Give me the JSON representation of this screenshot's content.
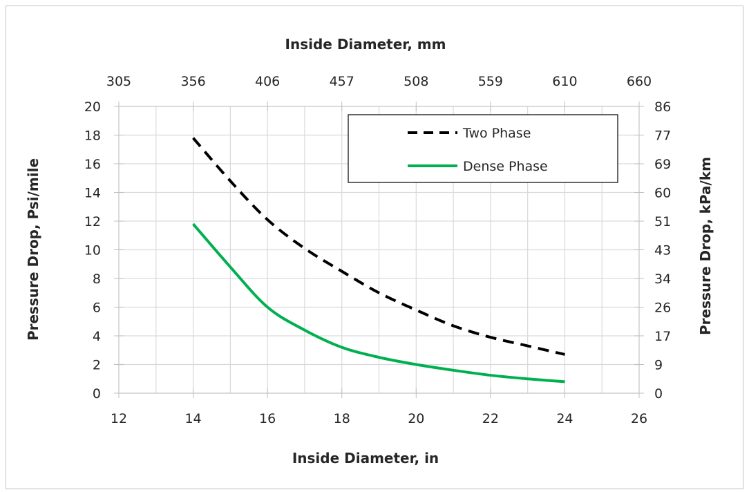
{
  "chart_data": {
    "type": "line",
    "x_axis_bottom": {
      "label": "Inside Diameter, in",
      "range": [
        12,
        26
      ],
      "ticks": [
        12,
        14,
        16,
        18,
        20,
        22,
        24,
        26
      ]
    },
    "x_axis_top": {
      "label": "Inside Diameter, mm",
      "ticks": [
        "305",
        "356",
        "406",
        "457",
        "508",
        "559",
        "610",
        "660"
      ]
    },
    "y_axis_left": {
      "label": "Pressure Drop, Psi/mile",
      "range": [
        0,
        20
      ],
      "ticks": [
        0,
        2,
        4,
        6,
        8,
        10,
        12,
        14,
        16,
        18,
        20
      ]
    },
    "y_axis_right": {
      "label": "Pressure Drop, kPa/km",
      "ticks": [
        "0",
        "9",
        "17",
        "26",
        "34",
        "43",
        "51",
        "60",
        "69",
        "77",
        "86"
      ]
    },
    "grid": true,
    "legend_position": "top-right",
    "series": [
      {
        "name": "Two Phase",
        "style": "dashed",
        "color": "#000000",
        "x": [
          14,
          15,
          16,
          17,
          18,
          19,
          20,
          21,
          22,
          23,
          24
        ],
        "y": [
          17.8,
          14.8,
          12.1,
          10.1,
          8.5,
          7.0,
          5.8,
          4.7,
          3.9,
          3.3,
          2.7
        ]
      },
      {
        "name": "Dense Phase",
        "style": "solid",
        "color": "#00b050",
        "x": [
          14,
          15,
          16,
          17,
          18,
          19,
          20,
          21,
          22,
          23,
          24
        ],
        "y": [
          11.8,
          8.8,
          6.0,
          4.4,
          3.2,
          2.5,
          2.0,
          1.6,
          1.25,
          1.0,
          0.8
        ]
      }
    ]
  }
}
